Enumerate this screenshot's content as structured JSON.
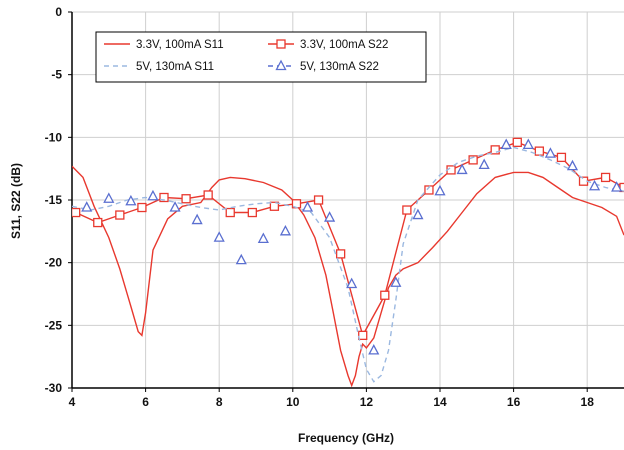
{
  "chart_data": {
    "type": "line",
    "xlabel": "Frequency (GHz)",
    "ylabel": "S11, S22 (dB)",
    "xlim": [
      4,
      19
    ],
    "ylim": [
      -30,
      0
    ],
    "xticks": [
      4,
      6,
      8,
      10,
      12,
      14,
      16,
      18
    ],
    "yticks": [
      0,
      -5,
      -10,
      -15,
      -20,
      -25,
      -30
    ],
    "grid": true,
    "legend_position": "top-left",
    "series": [
      {
        "name": "3.3V, 100mA S11",
        "color": "#e8382e",
        "style": "solid",
        "marker": "none",
        "x": [
          4,
          4.3,
          4.6,
          5,
          5.3,
          5.6,
          5.8,
          5.9,
          6.0,
          6.2,
          6.6,
          7.0,
          7.5,
          7.8,
          8.0,
          8.3,
          8.7,
          9.2,
          9.7,
          10.0,
          10.3,
          10.6,
          10.9,
          11.1,
          11.3,
          11.5,
          11.6,
          11.7,
          11.8,
          11.9,
          12.0,
          12.2,
          12.4,
          12.6,
          12.8,
          13.0,
          13.4,
          13.8,
          14.2,
          14.6,
          15.0,
          15.5,
          16.0,
          16.4,
          16.8,
          17.2,
          17.6,
          18.0,
          18.4,
          18.8,
          19.0
        ],
        "y": [
          -12.3,
          -13.2,
          -15.5,
          -18.0,
          -20.5,
          -23.5,
          -25.5,
          -25.8,
          -24.0,
          -19.0,
          -16.5,
          -15.5,
          -15.2,
          -14.0,
          -13.4,
          -13.2,
          -13.3,
          -13.6,
          -14.2,
          -15.0,
          -16.2,
          -18.0,
          -21.0,
          -24.0,
          -27.0,
          -29.0,
          -29.8,
          -29.0,
          -27.5,
          -26.5,
          -26.8,
          -26.0,
          -24.0,
          -22.0,
          -21.0,
          -20.5,
          -20.0,
          -18.8,
          -17.5,
          -16.0,
          -14.5,
          -13.2,
          -12.8,
          -12.8,
          -13.2,
          -14.0,
          -14.8,
          -15.2,
          -15.6,
          -16.3,
          -17.8
        ]
      },
      {
        "name": "3.3V, 100mA S22",
        "color": "#e8382e",
        "style": "solid",
        "marker": "square",
        "x": [
          4.1,
          4.7,
          5.3,
          5.9,
          6.5,
          7.1,
          7.7,
          8.3,
          8.9,
          9.5,
          10.1,
          10.7,
          11.3,
          11.9,
          12.5,
          13.1,
          13.7,
          14.3,
          14.9,
          15.5,
          16.1,
          16.7,
          17.3,
          17.9,
          18.5,
          19.0
        ],
        "y": [
          -16.0,
          -16.8,
          -16.2,
          -15.6,
          -14.8,
          -14.9,
          -14.6,
          -16.0,
          -16.0,
          -15.5,
          -15.3,
          -15.0,
          -19.3,
          -25.8,
          -22.6,
          -15.8,
          -14.2,
          -12.6,
          -11.8,
          -11.0,
          -10.4,
          -11.1,
          -11.6,
          -13.5,
          -13.2,
          -14.0
        ]
      },
      {
        "name": "5V, 130mA S11",
        "color": "#9bb8e0",
        "style": "dashed",
        "marker": "none",
        "x": [
          4,
          4.5,
          5,
          5.5,
          6,
          6.5,
          7,
          7.5,
          8,
          8.5,
          9,
          9.5,
          10,
          10.5,
          11,
          11.5,
          11.8,
          12.0,
          12.2,
          12.4,
          12.6,
          12.8,
          13.0,
          13.4,
          14,
          14.5,
          15,
          15.5,
          16,
          16.5,
          17,
          17.5,
          18,
          18.5,
          19
        ],
        "y": [
          -15.5,
          -15.8,
          -15.5,
          -15.0,
          -14.8,
          -15.0,
          -15.3,
          -15.6,
          -15.8,
          -15.5,
          -15.3,
          -15.2,
          -15.5,
          -16.0,
          -18.0,
          -22.0,
          -26.0,
          -28.5,
          -29.5,
          -29.0,
          -27.0,
          -23.0,
          -18.5,
          -15.0,
          -13.0,
          -12.0,
          -11.5,
          -11.2,
          -10.8,
          -11.2,
          -11.8,
          -12.5,
          -13.5,
          -14.0,
          -14.3
        ]
      },
      {
        "name": "5V, 130mA S22",
        "color": "#5a6fd0",
        "style": "dashed",
        "marker": "triangle",
        "x": [
          4.4,
          5.0,
          5.6,
          6.2,
          6.8,
          7.4,
          8.0,
          8.6,
          9.2,
          9.8,
          10.4,
          11.0,
          11.6,
          12.2,
          12.8,
          13.4,
          14.0,
          14.6,
          15.2,
          15.8,
          16.4,
          17.0,
          17.6,
          18.2,
          18.8
        ],
        "y": [
          -15.6,
          -14.9,
          -15.1,
          -14.7,
          -15.6,
          -16.6,
          -18.0,
          -19.8,
          -18.1,
          -17.5,
          -15.6,
          -16.4,
          -21.7,
          -27.0,
          -21.6,
          -16.2,
          -14.3,
          -12.6,
          -12.2,
          -10.6,
          -10.6,
          -11.3,
          -12.3,
          -13.9,
          -14.0
        ]
      }
    ]
  }
}
